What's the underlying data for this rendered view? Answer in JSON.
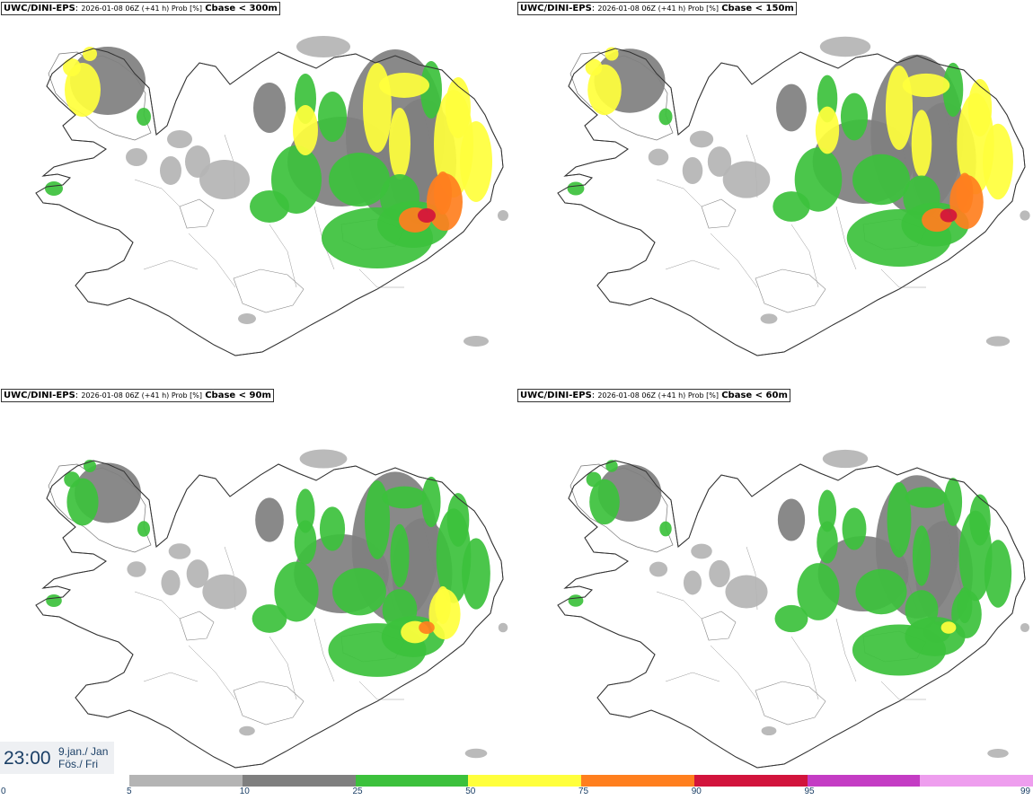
{
  "panels": [
    {
      "model": "UWC/DINI-EPS",
      "meta": "2026-01-08 06Z (+41 h) Prob [%]",
      "threshold": "Cbase < 300m",
      "intensity": 1.0
    },
    {
      "model": "UWC/DINI-EPS",
      "meta": "2026-01-08 06Z (+41 h) Prob [%]",
      "threshold": "Cbase < 150m",
      "intensity": 0.85
    },
    {
      "model": "UWC/DINI-EPS",
      "meta": "2026-01-08 06Z (+41 h) Prob [%]",
      "threshold": "Cbase < 90m",
      "intensity": 0.7
    },
    {
      "model": "UWC/DINI-EPS",
      "meta": "2026-01-08 06Z (+41 h) Prob [%]",
      "threshold": "Cbase < 60m",
      "intensity": 0.6
    }
  ],
  "time": {
    "clock": "23:00",
    "date_line1": "9.jan./ Jan",
    "date_line2": "Fös./ Fri"
  },
  "legend": {
    "ticks": [
      "0",
      "5",
      "10",
      "25",
      "50",
      "75",
      "90",
      "95",
      "99"
    ],
    "colors": [
      "#b4b4b4",
      "#7f7f7f",
      "#3cc13c",
      "#ffff3c",
      "#ff7f1e",
      "#d2143c",
      "#c43cc4",
      "#ee9eee"
    ]
  }
}
